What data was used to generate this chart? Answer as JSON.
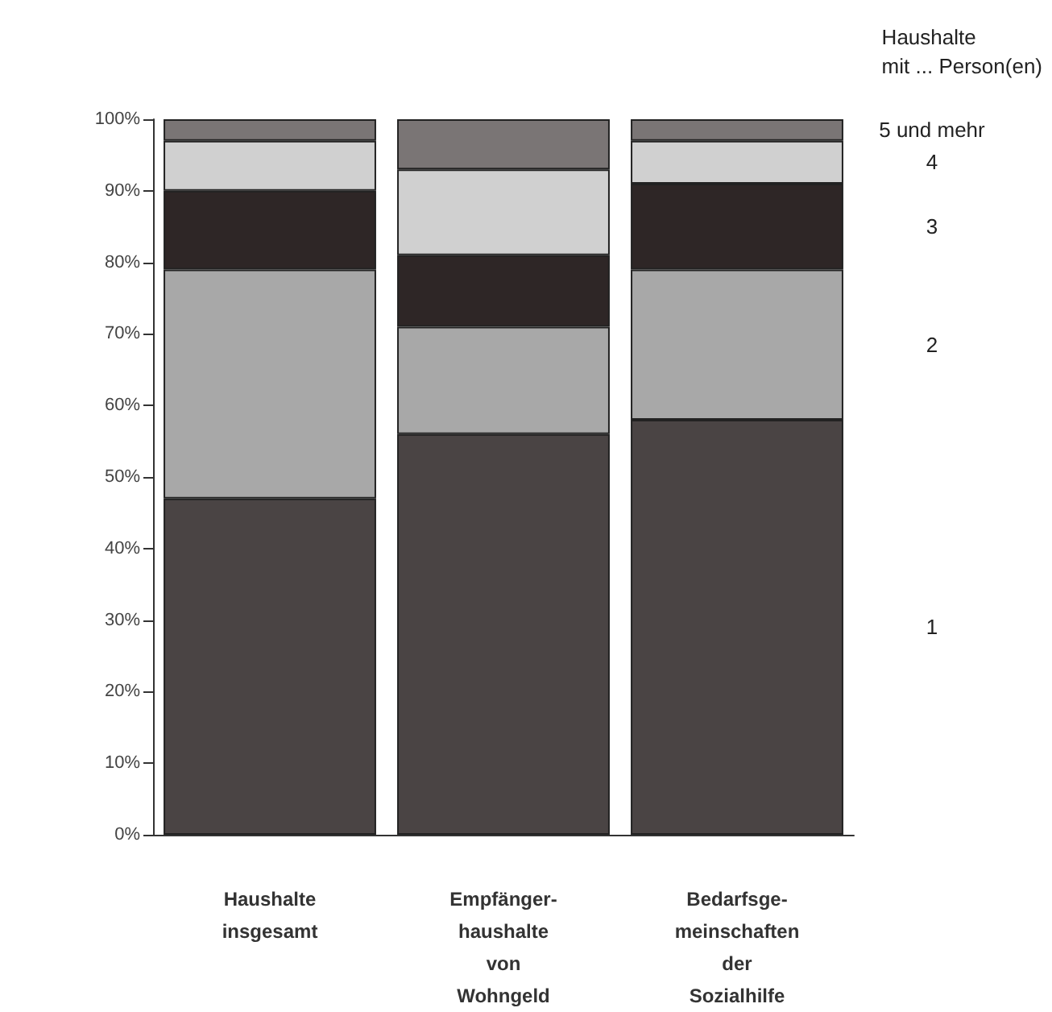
{
  "chart_data": {
    "type": "bar",
    "stacked": true,
    "legend_title": "Haushalte\nmit ... Person(en)",
    "categories": [
      "Haushalte\ninsgesamt",
      "Empfänger-\nhaushalte\nvon\nWohngeld",
      "Bedarfsge-\nmeinschaften\nder\nSozialhilfe"
    ],
    "series": [
      {
        "name": "1",
        "color": "#4a4444",
        "values": [
          47,
          56,
          58
        ]
      },
      {
        "name": "2",
        "color": "#a8a8a8",
        "values": [
          32,
          15,
          21
        ]
      },
      {
        "name": "3",
        "color": "#2e2626",
        "values": [
          11,
          10,
          12
        ]
      },
      {
        "name": "4",
        "color": "#d0d0d0",
        "values": [
          7,
          12,
          6
        ]
      },
      {
        "name": "5 und mehr",
        "color": "#7a7575",
        "values": [
          3,
          7,
          3
        ]
      }
    ],
    "ylim": [
      0,
      100
    ],
    "yticks": [
      {
        "value": 0,
        "label": "0%"
      },
      {
        "value": 10,
        "label": "10%"
      },
      {
        "value": 20,
        "label": "20%"
      },
      {
        "value": 30,
        "label": "30%"
      },
      {
        "value": 40,
        "label": "40%"
      },
      {
        "value": 50,
        "label": "50%"
      },
      {
        "value": 60,
        "label": "60%"
      },
      {
        "value": 70,
        "label": "70%"
      },
      {
        "value": 80,
        "label": "80%"
      },
      {
        "value": 90,
        "label": "90%"
      },
      {
        "value": 100,
        "label": "100%"
      }
    ],
    "grid": false,
    "legend": false
  }
}
